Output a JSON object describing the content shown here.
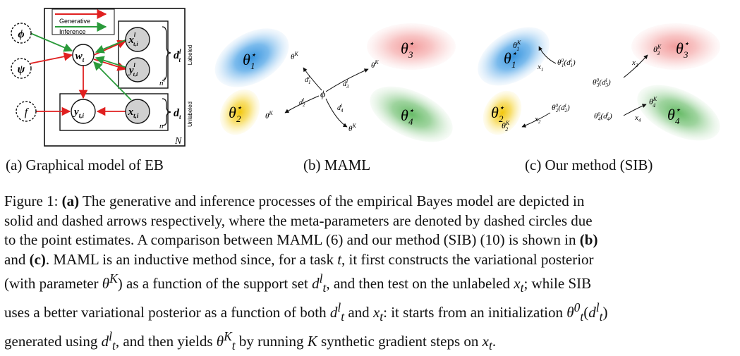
{
  "panel_a": {
    "legend": {
      "generative": "Generative",
      "inference": "Inference"
    },
    "nodes": {
      "phi": "ϕ",
      "psi": "ψ",
      "f": "f",
      "w": "w",
      "w_sub": "t",
      "y": "y",
      "y_sub": "t,i",
      "x": "x",
      "x_sub": "t,i",
      "xl": "x",
      "xl_sup": "l",
      "xl_sub": "t,i",
      "yl": "y",
      "yl_sup": "l",
      "yl_sub": "t,i"
    },
    "plates": {
      "N": "N",
      "n": "n",
      "nl": "n",
      "nl_sup": "l"
    },
    "brace_labels": {
      "dl": "d",
      "dl_sup": "l",
      "dl_sub": "t",
      "d": "d",
      "d_sub": "t"
    },
    "side_labels": {
      "labeled": "Labeled",
      "unlabeled": "Unlabeled"
    }
  },
  "panel_b": {
    "theta1": "θ",
    "theta1_sub": "1",
    "theta2": "θ",
    "theta2_sub": "2",
    "theta3": "θ",
    "theta3_sub": "3",
    "theta4": "θ",
    "theta4_sub": "4",
    "star": "⋆",
    "phi": "ϕ",
    "thetaK": "θ",
    "K": "K",
    "d": "d",
    "l": "l",
    "s1": "1",
    "s2": "2",
    "s3": "3",
    "s4": "4"
  },
  "panel_c": {
    "theta": "θ",
    "star": "⋆",
    "K": "K",
    "zero": "0",
    "x": "x",
    "s1": "1",
    "s2": "2",
    "s3": "3",
    "s4": "4",
    "d": "d",
    "l": "l",
    "open": "(",
    "close": ")"
  },
  "captions": {
    "a": "(a) Graphical model of EB",
    "b": "(b) MAML",
    "c": "(c) Our method (SIB)"
  },
  "figure_caption": {
    "prefix": "Figure 1: ",
    "lines": [
      "(a) The generative and inference processes of the empirical Bayes model are depicted in",
      "solid and dashed arrows respectively, where the meta-parameters are denoted by dashed circles due",
      "to the point estimates. A comparison between MAML (6) and our method (SIB) (10) is shown in (b)",
      "and (c). MAML is an inductive method since, for a task t, it first constructs the variational posterior",
      "(with parameter θ^K) as a function of the support set d_t^l, and then test on the unlabeled x_t; while SIB",
      "uses a better variational posterior as a function of both d_t^l and x_t: it starts from an initialization θ_t^0(d_t^l)",
      "generated using d_t^l, and then yields θ_t^K by running K synthetic gradient steps on x_t."
    ],
    "bold": {
      "a": "(a)",
      "b": "(b)",
      "c": "(c)"
    },
    "math": {
      "t": "t",
      "theta": "θ",
      "K": "K",
      "d": "d",
      "l": "l",
      "x": "x",
      "zero": "0"
    }
  },
  "colors": {
    "generative": "#e02020",
    "inference": "#2a9a3a",
    "blue": "#2f8fdc",
    "yellow": "#f2c400",
    "red": "#f08a8a",
    "green": "#5fb85f",
    "observed_node": "#d0d0d0"
  }
}
